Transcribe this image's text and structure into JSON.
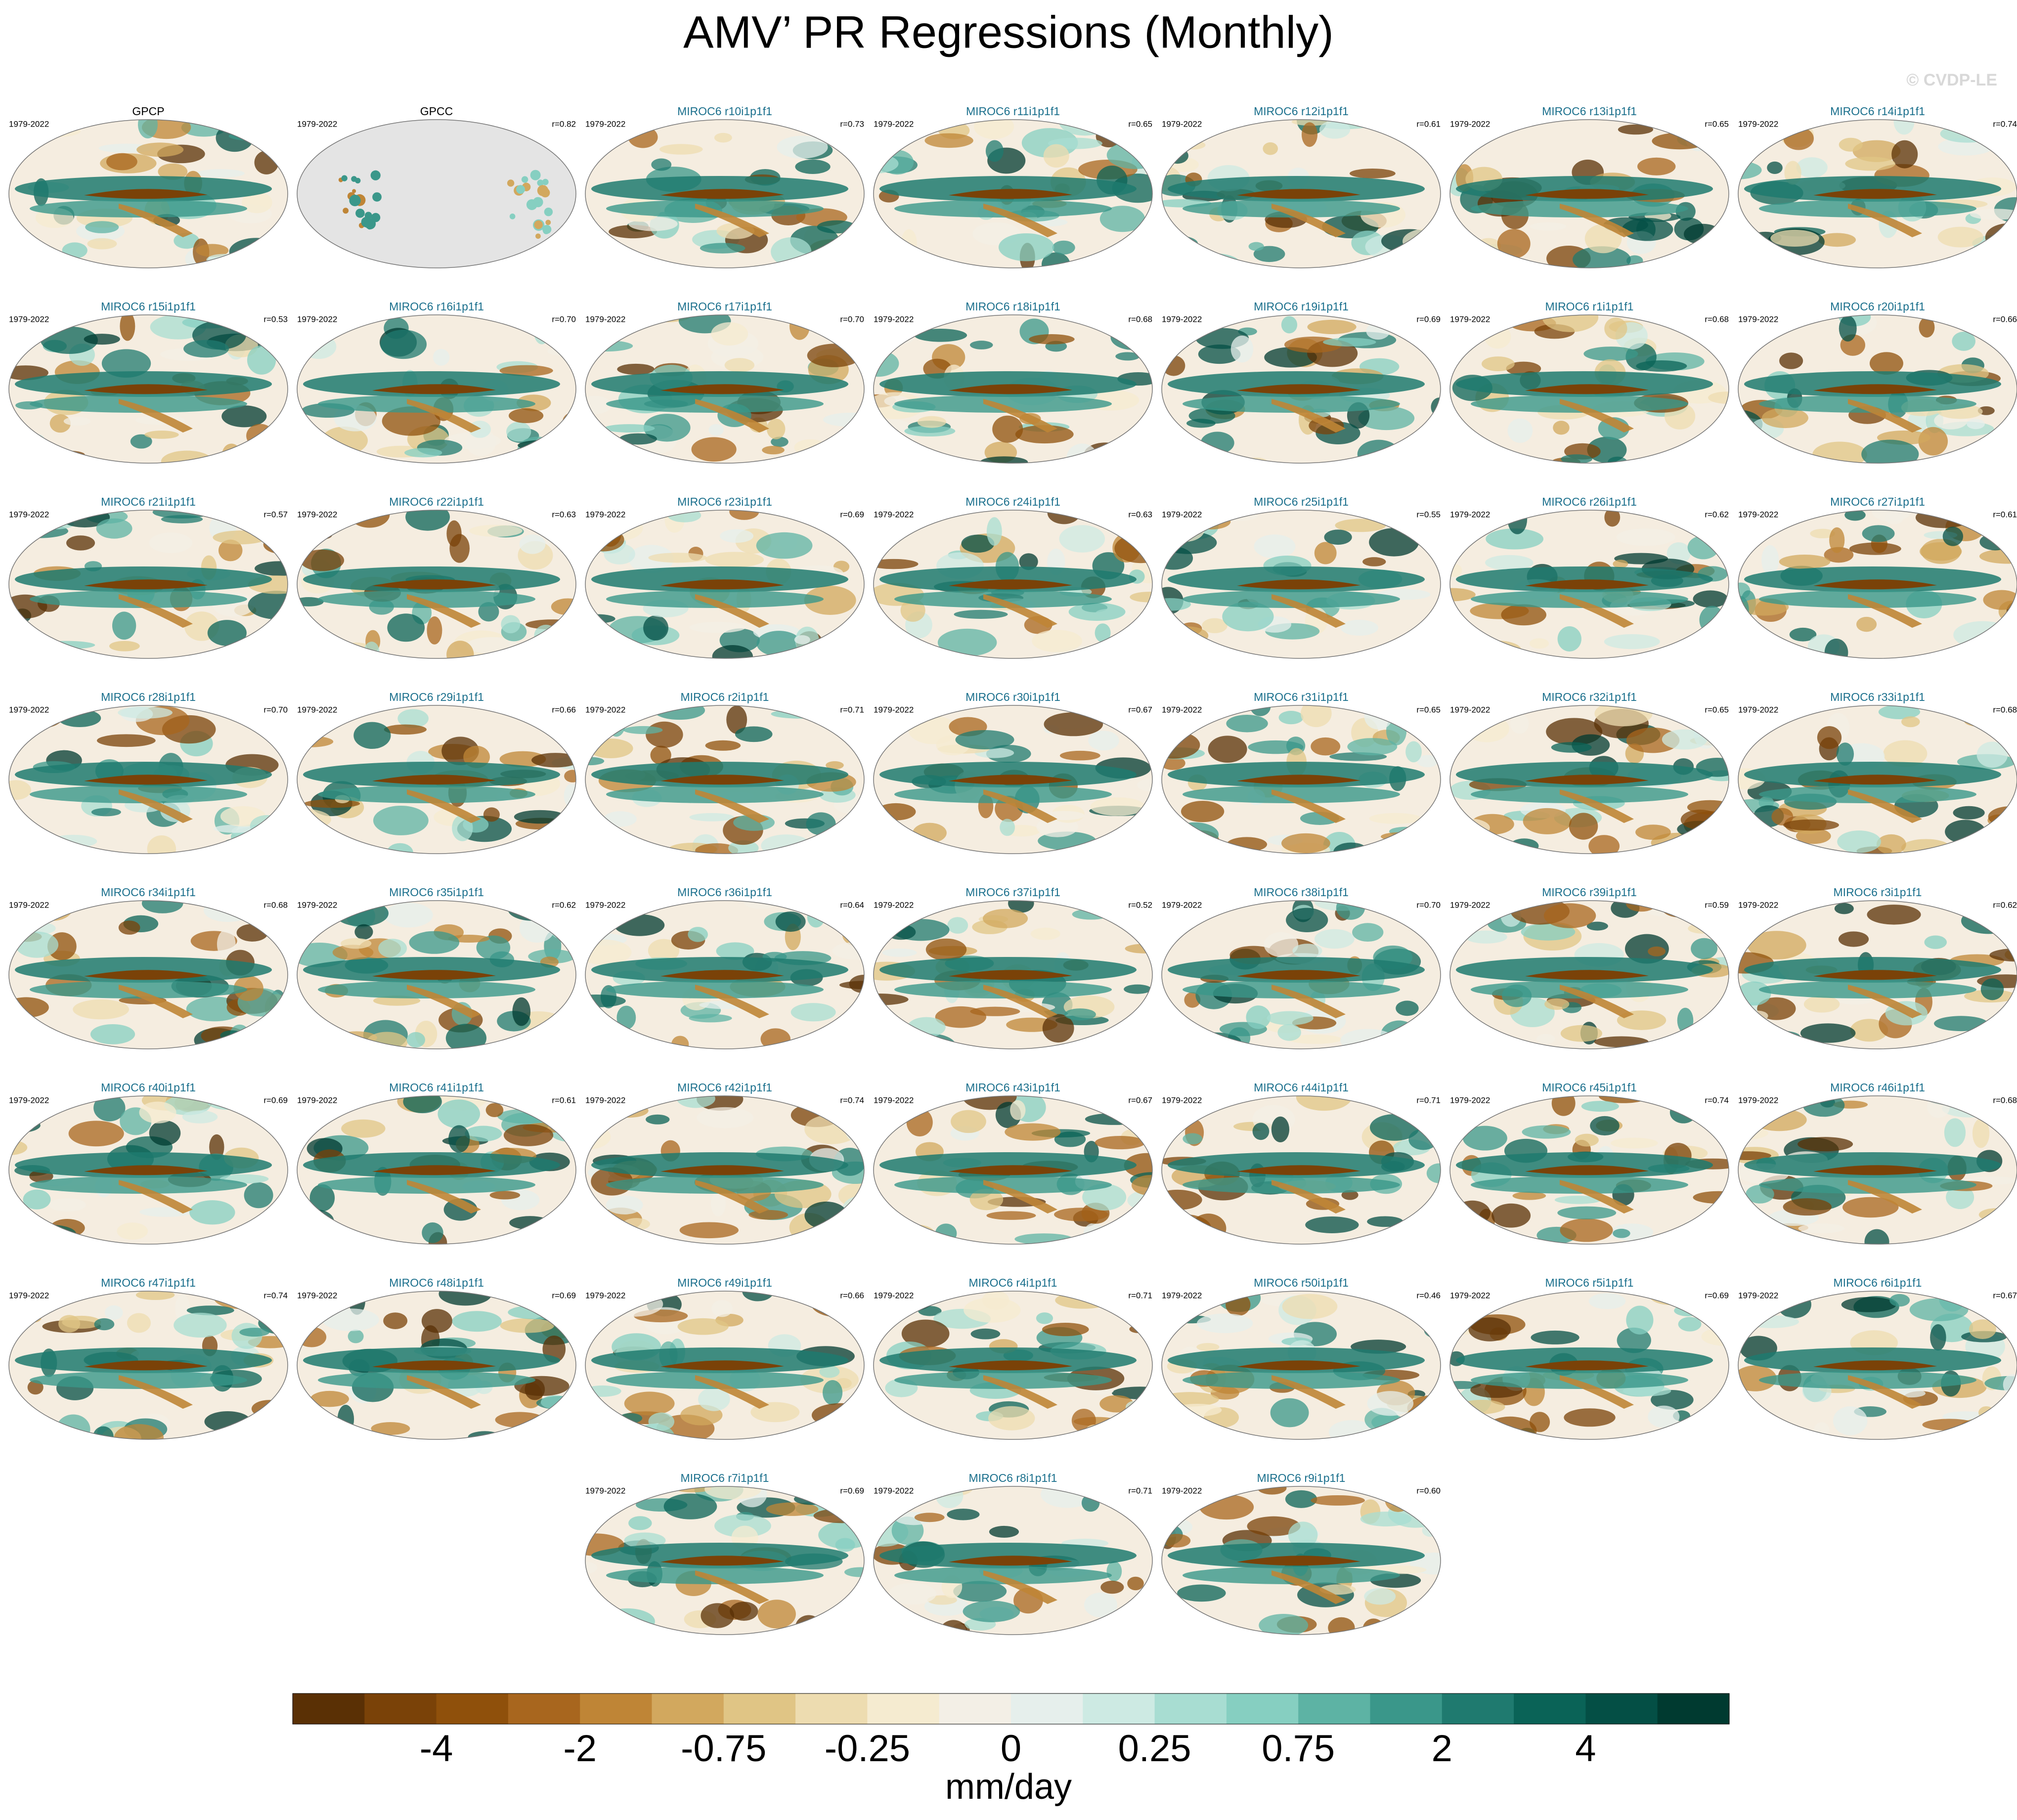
{
  "header": {
    "title": "AMV’ PR Regressions (Monthly)",
    "watermark": "© CVDP-LE"
  },
  "panels": [
    {
      "title": "GPCP",
      "period": "1979-2022",
      "title_color": "#000000"
    },
    {
      "title": "GPCC",
      "period": "1979-2022",
      "r": "r=0.82",
      "title_color": "#000000"
    },
    {
      "title": "MIROC6 r10i1p1f1",
      "period": "1979-2022",
      "r": "r=0.73",
      "title_color": "#1a6f8c"
    },
    {
      "title": "MIROC6 r11i1p1f1",
      "period": "1979-2022",
      "r": "r=0.65",
      "title_color": "#1a6f8c"
    },
    {
      "title": "MIROC6 r12i1p1f1",
      "period": "1979-2022",
      "r": "r=0.61",
      "title_color": "#1a6f8c"
    },
    {
      "title": "MIROC6 r13i1p1f1",
      "period": "1979-2022",
      "r": "r=0.65",
      "title_color": "#1a6f8c"
    },
    {
      "title": "MIROC6 r14i1p1f1",
      "period": "1979-2022",
      "r": "r=0.74",
      "title_color": "#1a6f8c"
    },
    {
      "title": "MIROC6 r15i1p1f1",
      "period": "1979-2022",
      "r": "r=0.53",
      "title_color": "#1a6f8c"
    },
    {
      "title": "MIROC6 r16i1p1f1",
      "period": "1979-2022",
      "r": "r=0.70",
      "title_color": "#1a6f8c"
    },
    {
      "title": "MIROC6 r17i1p1f1",
      "period": "1979-2022",
      "r": "r=0.70",
      "title_color": "#1a6f8c"
    },
    {
      "title": "MIROC6 r18i1p1f1",
      "period": "1979-2022",
      "r": "r=0.68",
      "title_color": "#1a6f8c"
    },
    {
      "title": "MIROC6 r19i1p1f1",
      "period": "1979-2022",
      "r": "r=0.69",
      "title_color": "#1a6f8c"
    },
    {
      "title": "MIROC6 r1i1p1f1",
      "period": "1979-2022",
      "r": "r=0.68",
      "title_color": "#1a6f8c"
    },
    {
      "title": "MIROC6 r20i1p1f1",
      "period": "1979-2022",
      "r": "r=0.66",
      "title_color": "#1a6f8c"
    },
    {
      "title": "MIROC6 r21i1p1f1",
      "period": "1979-2022",
      "r": "r=0.57",
      "title_color": "#1a6f8c"
    },
    {
      "title": "MIROC6 r22i1p1f1",
      "period": "1979-2022",
      "r": "r=0.63",
      "title_color": "#1a6f8c"
    },
    {
      "title": "MIROC6 r23i1p1f1",
      "period": "1979-2022",
      "r": "r=0.69",
      "title_color": "#1a6f8c"
    },
    {
      "title": "MIROC6 r24i1p1f1",
      "period": "1979-2022",
      "r": "r=0.63",
      "title_color": "#1a6f8c"
    },
    {
      "title": "MIROC6 r25i1p1f1",
      "period": "1979-2022",
      "r": "r=0.55",
      "title_color": "#1a6f8c"
    },
    {
      "title": "MIROC6 r26i1p1f1",
      "period": "1979-2022",
      "r": "r=0.62",
      "title_color": "#1a6f8c"
    },
    {
      "title": "MIROC6 r27i1p1f1",
      "period": "1979-2022",
      "r": "r=0.61",
      "title_color": "#1a6f8c"
    },
    {
      "title": "MIROC6 r28i1p1f1",
      "period": "1979-2022",
      "r": "r=0.70",
      "title_color": "#1a6f8c"
    },
    {
      "title": "MIROC6 r29i1p1f1",
      "period": "1979-2022",
      "r": "r=0.66",
      "title_color": "#1a6f8c"
    },
    {
      "title": "MIROC6 r2i1p1f1",
      "period": "1979-2022",
      "r": "r=0.71",
      "title_color": "#1a6f8c"
    },
    {
      "title": "MIROC6 r30i1p1f1",
      "period": "1979-2022",
      "r": "r=0.67",
      "title_color": "#1a6f8c"
    },
    {
      "title": "MIROC6 r31i1p1f1",
      "period": "1979-2022",
      "r": "r=0.65",
      "title_color": "#1a6f8c"
    },
    {
      "title": "MIROC6 r32i1p1f1",
      "period": "1979-2022",
      "r": "r=0.65",
      "title_color": "#1a6f8c"
    },
    {
      "title": "MIROC6 r33i1p1f1",
      "period": "1979-2022",
      "r": "r=0.68",
      "title_color": "#1a6f8c"
    },
    {
      "title": "MIROC6 r34i1p1f1",
      "period": "1979-2022",
      "r": "r=0.68",
      "title_color": "#1a6f8c"
    },
    {
      "title": "MIROC6 r35i1p1f1",
      "period": "1979-2022",
      "r": "r=0.62",
      "title_color": "#1a6f8c"
    },
    {
      "title": "MIROC6 r36i1p1f1",
      "period": "1979-2022",
      "r": "r=0.64",
      "title_color": "#1a6f8c"
    },
    {
      "title": "MIROC6 r37i1p1f1",
      "period": "1979-2022",
      "r": "r=0.52",
      "title_color": "#1a6f8c"
    },
    {
      "title": "MIROC6 r38i1p1f1",
      "period": "1979-2022",
      "r": "r=0.70",
      "title_color": "#1a6f8c"
    },
    {
      "title": "MIROC6 r39i1p1f1",
      "period": "1979-2022",
      "r": "r=0.59",
      "title_color": "#1a6f8c"
    },
    {
      "title": "MIROC6 r3i1p1f1",
      "period": "1979-2022",
      "r": "r=0.62",
      "title_color": "#1a6f8c"
    },
    {
      "title": "MIROC6 r40i1p1f1",
      "period": "1979-2022",
      "r": "r=0.69",
      "title_color": "#1a6f8c"
    },
    {
      "title": "MIROC6 r41i1p1f1",
      "period": "1979-2022",
      "r": "r=0.61",
      "title_color": "#1a6f8c"
    },
    {
      "title": "MIROC6 r42i1p1f1",
      "period": "1979-2022",
      "r": "r=0.74",
      "title_color": "#1a6f8c"
    },
    {
      "title": "MIROC6 r43i1p1f1",
      "period": "1979-2022",
      "r": "r=0.67",
      "title_color": "#1a6f8c"
    },
    {
      "title": "MIROC6 r44i1p1f1",
      "period": "1979-2022",
      "r": "r=0.71",
      "title_color": "#1a6f8c"
    },
    {
      "title": "MIROC6 r45i1p1f1",
      "period": "1979-2022",
      "r": "r=0.74",
      "title_color": "#1a6f8c"
    },
    {
      "title": "MIROC6 r46i1p1f1",
      "period": "1979-2022",
      "r": "r=0.68",
      "title_color": "#1a6f8c"
    },
    {
      "title": "MIROC6 r47i1p1f1",
      "period": "1979-2022",
      "r": "r=0.74",
      "title_color": "#1a6f8c"
    },
    {
      "title": "MIROC6 r48i1p1f1",
      "period": "1979-2022",
      "r": "r=0.69",
      "title_color": "#1a6f8c"
    },
    {
      "title": "MIROC6 r49i1p1f1",
      "period": "1979-2022",
      "r": "r=0.66",
      "title_color": "#1a6f8c"
    },
    {
      "title": "MIROC6 r4i1p1f1",
      "period": "1979-2022",
      "r": "r=0.71",
      "title_color": "#1a6f8c"
    },
    {
      "title": "MIROC6 r50i1p1f1",
      "period": "1979-2022",
      "r": "r=0.46",
      "title_color": "#1a6f8c"
    },
    {
      "title": "MIROC6 r5i1p1f1",
      "period": "1979-2022",
      "r": "r=0.69",
      "title_color": "#1a6f8c"
    },
    {
      "title": "MIROC6 r6i1p1f1",
      "period": "1979-2022",
      "r": "r=0.67",
      "title_color": "#1a6f8c"
    },
    {
      "title": "MIROC6 r7i1p1f1",
      "period": "1979-2022",
      "r": "r=0.69",
      "title_color": "#1a6f8c"
    },
    {
      "title": "MIROC6 r8i1p1f1",
      "period": "1979-2022",
      "r": "r=0.71",
      "title_color": "#1a6f8c"
    },
    {
      "title": "MIROC6 r9i1p1f1",
      "period": "1979-2022",
      "r": "r=0.60",
      "title_color": "#1a6f8c"
    }
  ],
  "colorbar": {
    "label": "mm/day",
    "colors": [
      "#5a3005",
      "#7a4208",
      "#8f500b",
      "#a8661e",
      "#bf8536",
      "#d2a85e",
      "#e0c585",
      "#eddcb0",
      "#f5ebd0",
      "#f3efe6",
      "#e6efec",
      "#cdeae3",
      "#a8ddd2",
      "#86cfc1",
      "#5db3a4",
      "#3a978a",
      "#1f7a6f",
      "#0a6357",
      "#044f45",
      "#003a30"
    ],
    "ticks": [
      -4,
      -2,
      -0.75,
      -0.25,
      0,
      0.25,
      0.75,
      2,
      4
    ]
  }
}
